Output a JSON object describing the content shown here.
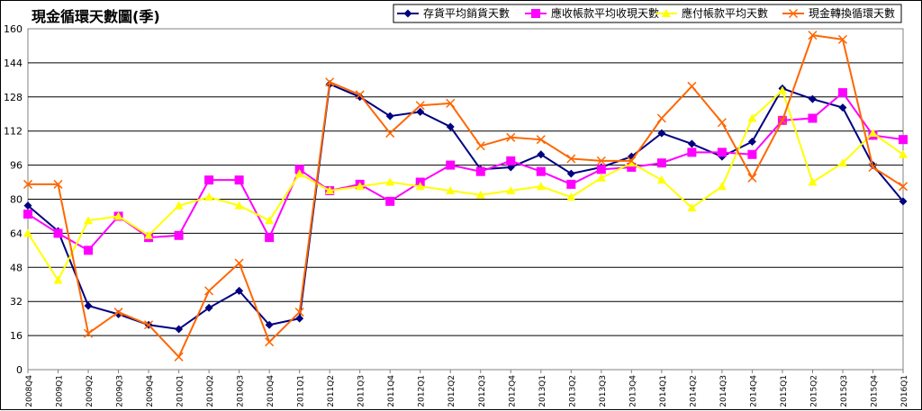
{
  "chart_data": {
    "type": "line",
    "title": "現金循環天數圖(季)",
    "ylim": [
      0,
      160
    ],
    "yticks": [
      0,
      16,
      32,
      48,
      64,
      80,
      96,
      112,
      128,
      144,
      160
    ],
    "grid": true,
    "legend_position": "top-right",
    "categories": [
      "2008Q4",
      "2009Q1",
      "2009Q2",
      "2009Q3",
      "2009Q4",
      "2010Q1",
      "2010Q2",
      "2010Q3",
      "2010Q4",
      "2011Q1",
      "2011Q2",
      "2011Q3",
      "2011Q4",
      "2012Q1",
      "2012Q2",
      "2012Q3",
      "2012Q4",
      "2013Q1",
      "2013Q2",
      "2013Q3",
      "2013Q4",
      "2014Q1",
      "2014Q2",
      "2014Q3",
      "2014Q4",
      "2015Q1",
      "2015Q2",
      "2015Q3",
      "2015Q4",
      "2016Q1"
    ],
    "series": [
      {
        "name": "存貨平均銷貨天數",
        "color": "#000080",
        "marker": "diamond",
        "values": [
          77,
          65,
          30,
          26,
          21,
          19,
          29,
          37,
          21,
          24,
          134,
          128,
          119,
          121,
          114,
          94,
          95,
          101,
          92,
          95,
          100,
          111,
          106,
          100,
          107,
          132,
          127,
          123,
          96,
          79
        ]
      },
      {
        "name": "應收帳款平均收現天數",
        "color": "#FF00FF",
        "marker": "square",
        "values": [
          73,
          64,
          56,
          72,
          62,
          63,
          89,
          89,
          62,
          94,
          84,
          87,
          79,
          88,
          96,
          93,
          98,
          93,
          87,
          94,
          95,
          97,
          102,
          102,
          101,
          117,
          118,
          130,
          110,
          108
        ]
      },
      {
        "name": "應付帳款平均天數",
        "color": "#FFFF00",
        "marker": "triangle",
        "values": [
          64,
          42,
          70,
          72,
          63,
          77,
          81,
          77,
          70,
          92,
          84,
          86,
          88,
          86,
          84,
          82,
          84,
          86,
          81,
          90,
          97,
          89,
          76,
          86,
          118,
          131,
          88,
          97,
          111,
          101
        ]
      },
      {
        "name": "現金轉換循環天數",
        "color": "#FF6600",
        "marker": "x",
        "values": [
          87,
          87,
          17,
          27,
          21,
          6,
          37,
          50,
          13,
          27,
          135,
          129,
          111,
          124,
          125,
          105,
          109,
          108,
          99,
          98,
          98,
          118,
          133,
          116,
          90,
          117,
          157,
          155,
          95,
          86
        ]
      }
    ]
  }
}
